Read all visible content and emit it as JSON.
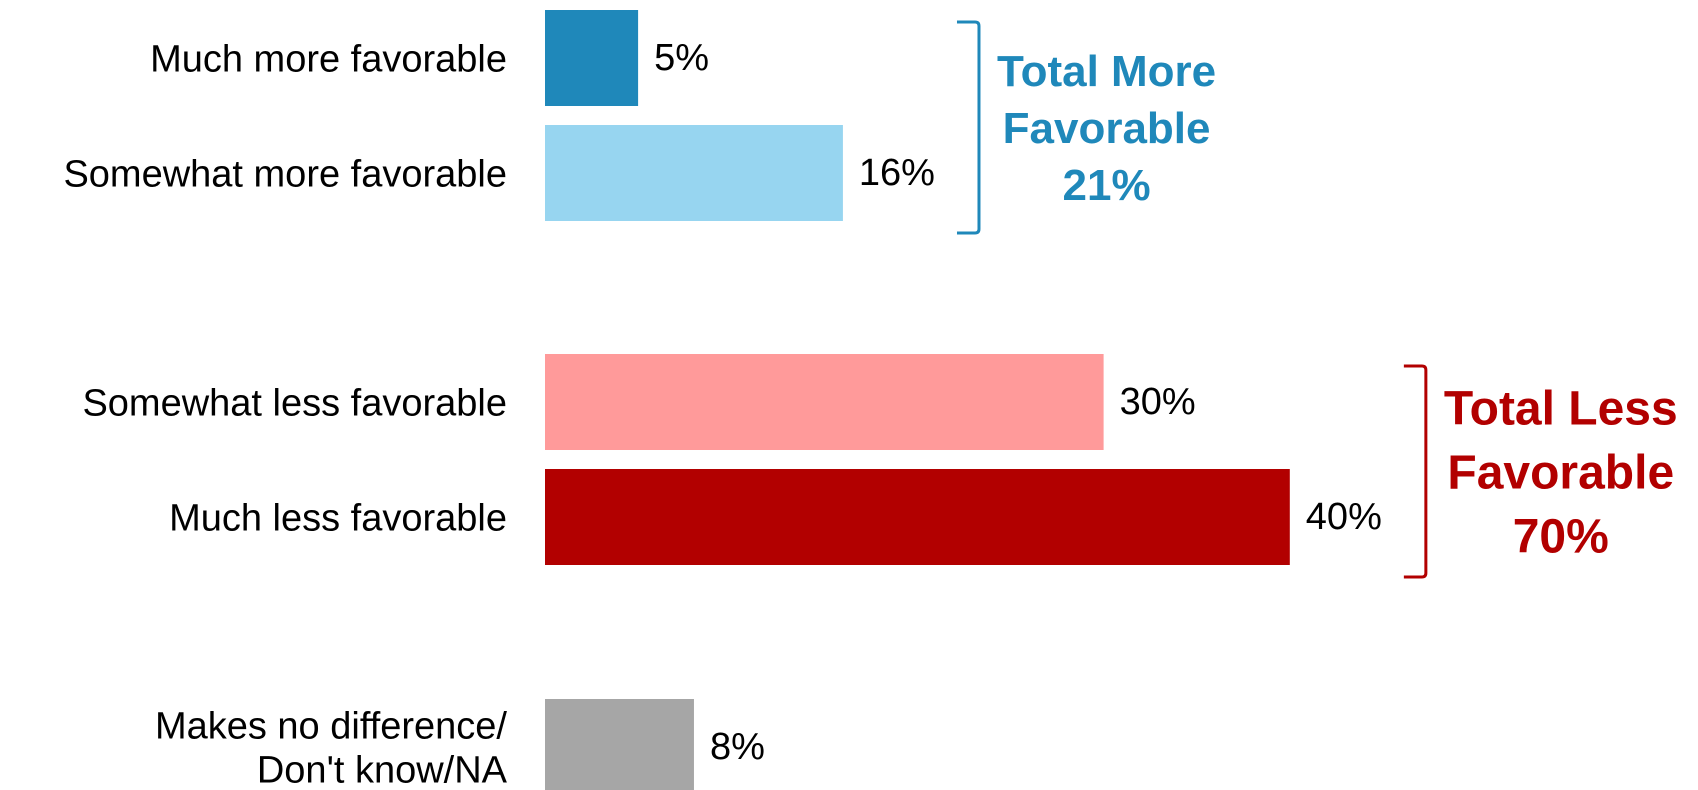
{
  "chart_data": {
    "type": "bar",
    "orientation": "horizontal",
    "title": "",
    "xlabel": "",
    "ylabel": "",
    "xlim": [
      0,
      40
    ],
    "grid": false,
    "categories": [
      "Much more favorable",
      "Somewhat more favorable",
      "Somewhat less favorable",
      "Much less favorable",
      "Makes no difference/ Don't know/NA"
    ],
    "category_lines": [
      [
        "Much more favorable"
      ],
      [
        "Somewhat more favorable"
      ],
      [
        "Somewhat less favorable"
      ],
      [
        "Much less favorable"
      ],
      [
        "Makes no difference/",
        "Don't know/NA"
      ]
    ],
    "values": [
      5,
      16,
      30,
      40,
      8
    ],
    "value_labels": [
      "5%",
      "16%",
      "30%",
      "40%",
      "8%"
    ],
    "bar_colors": [
      "#1f88ba",
      "#97d5f0",
      "#ff9a9a",
      "#b20000",
      "#a6a6a6"
    ],
    "groups": [
      {
        "lines": [
          "Total More",
          "Favorable",
          "21%"
        ],
        "value": 21,
        "members": [
          0,
          1
        ],
        "color": "#1f88ba"
      },
      {
        "lines": [
          "Total Less",
          "Favorable",
          "70%"
        ],
        "value": 70,
        "members": [
          2,
          3
        ],
        "color": "#b20000"
      }
    ]
  }
}
